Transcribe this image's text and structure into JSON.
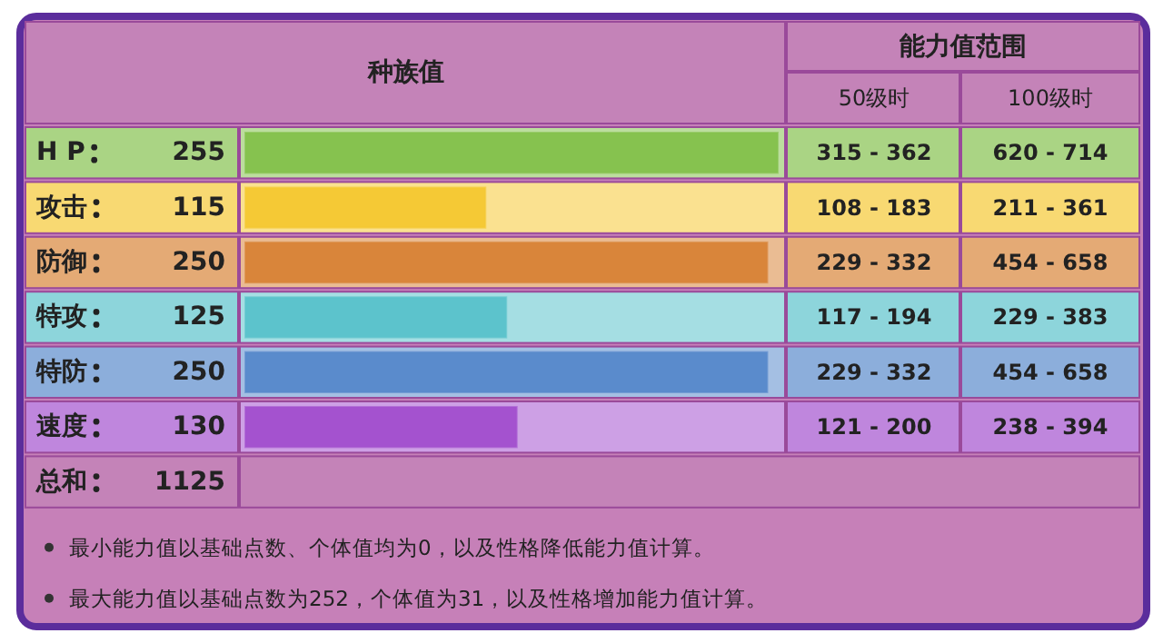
{
  "chart_data": {
    "type": "bar",
    "orientation": "horizontal",
    "title": "种族值",
    "categories": [
      "H P",
      "攻击",
      "防御",
      "特攻",
      "特防",
      "速度"
    ],
    "values": [
      255,
      115,
      250,
      125,
      250,
      130
    ],
    "colors": [
      "#86c24f",
      "#f5c935",
      "#d9853a",
      "#5cc3cc",
      "#5a8bcc",
      "#a452cf"
    ],
    "data_labels": true,
    "annotations": [
      "能力值范围",
      "50级时",
      "100级时",
      "315 - 362",
      "620 - 714",
      "108 - 183",
      "211 - 361",
      "229 - 332",
      "454 - 658",
      "117 - 194",
      "229 - 383",
      "229 - 332",
      "454 - 658",
      "121 - 200",
      "238 - 394",
      "总和",
      "1125",
      "最小能力值以基础点数、个体值均为0，以及性格降低能力值计算。",
      "最大能力值以基础点数为252，个体值为31，以及性格增加能力值计算。"
    ]
  }
}
